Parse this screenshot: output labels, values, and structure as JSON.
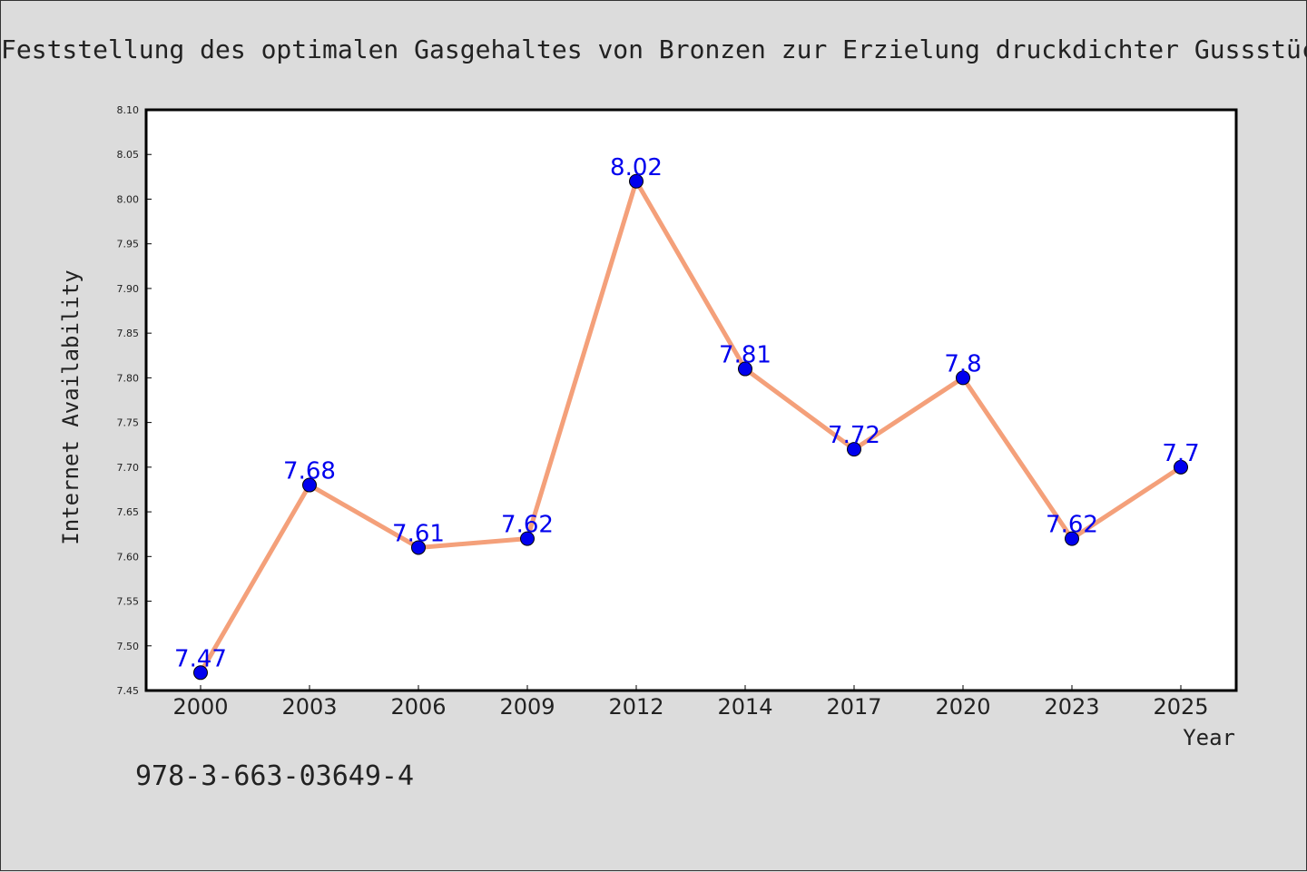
{
  "title": "Feststellung des optimalen Gasgehaltes von Bronzen zur Erzielung druckdichter Gussstücke",
  "isbn": "978-3-663-03649-4",
  "colors": {
    "background": "#dcdcdc",
    "plot_background": "#ffffff",
    "line": "#f4a07a",
    "marker": "#0000ee",
    "label": "#0000ee"
  },
  "chart_data": {
    "type": "line",
    "title": "Feststellung des optimalen Gasgehaltes von Bronzen zur Erzielung druckdichter Gussstücke",
    "xlabel": "Year",
    "ylabel": "Internet Availability",
    "categories": [
      "2000",
      "2003",
      "2006",
      "2009",
      "2012",
      "2014",
      "2017",
      "2020",
      "2023",
      "2025"
    ],
    "series": [
      {
        "values": [
          7.47,
          7.68,
          7.61,
          7.62,
          8.02,
          7.81,
          7.72,
          7.8,
          7.62,
          7.7
        ],
        "labels": [
          "7.47",
          "7.68",
          "7.61",
          "7.62",
          "8.02",
          "7.81",
          "7.72",
          "7.8",
          "7.62",
          "7.7"
        ]
      }
    ],
    "ylim": [
      7.45,
      8.1
    ],
    "yticks": [
      "7.45",
      "7.50",
      "7.55",
      "7.60",
      "7.65",
      "7.70",
      "7.75",
      "7.80",
      "7.85",
      "7.90",
      "7.95",
      "8.00",
      "8.05",
      "8.10"
    ],
    "grid": false,
    "legend": "none"
  }
}
